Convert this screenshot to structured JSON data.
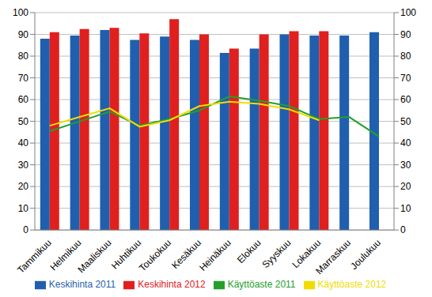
{
  "chart_data": {
    "type": "bar",
    "categories": [
      "Tammikuu",
      "Helmikuu",
      "Maaliskuu",
      "Huhtikuu",
      "Toukokuu",
      "Kesäkuu",
      "Heinäkuu",
      "Elokuu",
      "Syyskuu",
      "Lokakuu",
      "Marraskuu",
      "Joulukuu"
    ],
    "series": [
      {
        "name": "Keskihinta 2011",
        "type": "bar",
        "color": "#1f5fae",
        "values": [
          88,
          89.5,
          92,
          87.5,
          89,
          87.5,
          81.5,
          83.5,
          90,
          89.5,
          89.5,
          91
        ]
      },
      {
        "name": "Keskihinta 2012",
        "type": "bar",
        "color": "#e0201f",
        "values": [
          91,
          92.5,
          93,
          90.5,
          97,
          90,
          83.5,
          90,
          91.5,
          91.5,
          null,
          null
        ]
      },
      {
        "name": "Käyttöaste 2011",
        "type": "line",
        "axis": "y2",
        "marker": "none",
        "color": "#22a02a",
        "values": [
          45.5,
          50,
          54.5,
          48,
          51,
          55,
          61.5,
          59.5,
          57,
          51,
          52,
          43
        ]
      },
      {
        "name": "Käyttöaste 2012",
        "type": "line",
        "axis": "y2",
        "marker": "none",
        "color": "#f2dc00",
        "values": [
          48,
          52,
          56,
          47.5,
          50.5,
          57,
          59,
          58,
          55.5,
          50.5,
          null,
          null
        ]
      }
    ],
    "ylim": [
      0,
      100
    ],
    "yticks": [
      0,
      10,
      20,
      30,
      40,
      50,
      60,
      70,
      80,
      90,
      100
    ],
    "y2lim": [
      0,
      100
    ],
    "y2ticks": [
      0,
      10,
      20,
      30,
      40,
      50,
      60,
      70,
      80,
      90,
      100
    ],
    "grid": true,
    "legend": "bottom"
  }
}
